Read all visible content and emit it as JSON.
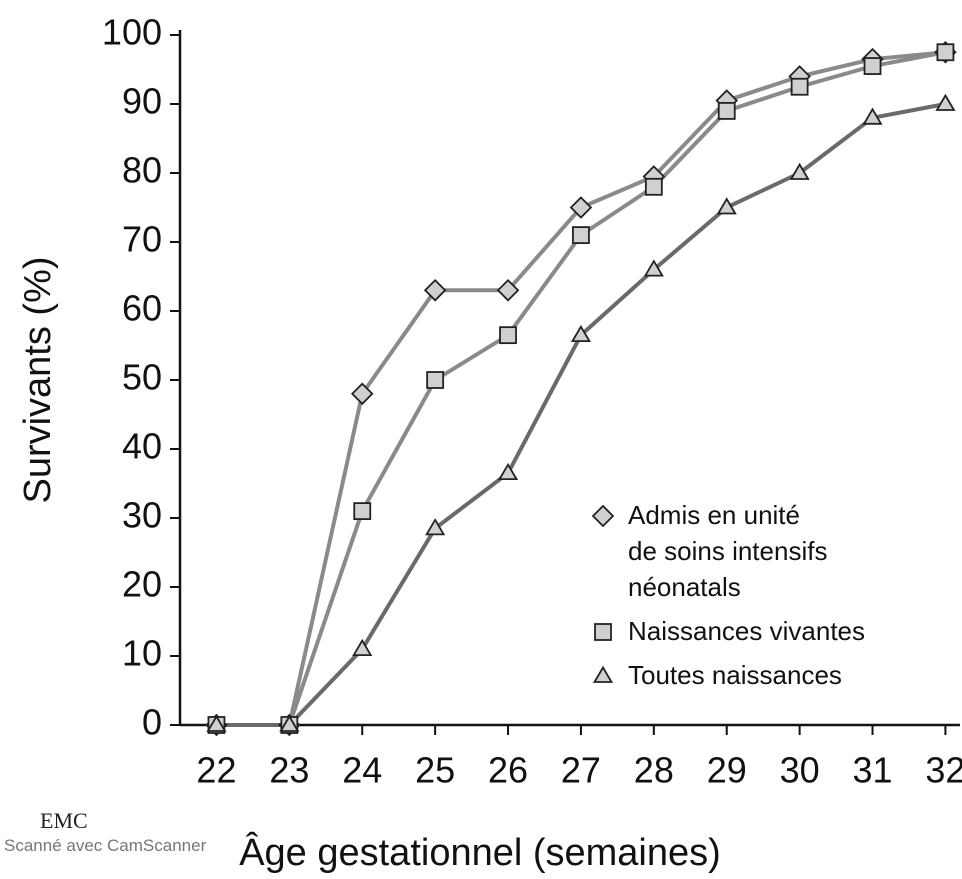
{
  "chart_data": {
    "type": "line",
    "x_label": "Âge gestationnel (semaines)",
    "y_label": "Survivants (%)",
    "logo": "EMC",
    "watermark": "Scanné avec CamScanner",
    "x": [
      22,
      23,
      24,
      25,
      26,
      27,
      28,
      29,
      30,
      31,
      32
    ],
    "xlim": [
      21.5,
      32.2
    ],
    "xticks": [
      22,
      23,
      24,
      25,
      26,
      27,
      28,
      29,
      30,
      31,
      32
    ],
    "ylim": [
      0,
      100
    ],
    "yticks": [
      0,
      10,
      20,
      30,
      40,
      50,
      60,
      70,
      80,
      90,
      100
    ],
    "grid": false,
    "legend": "lower right",
    "series": [
      {
        "name": "Admis en unité\nde soins intensifs\nnéonatals",
        "color": "#8a8a8a",
        "marker": "diamond",
        "values": [
          0,
          0,
          48,
          63,
          63,
          75,
          79.5,
          90.5,
          94,
          96.5,
          97.5
        ]
      },
      {
        "name": "Naissances vivantes",
        "color": "#8a8a8a",
        "marker": "square",
        "values": [
          0,
          0,
          31,
          50,
          56.5,
          71,
          78,
          89,
          92.5,
          95.5,
          97.5
        ]
      },
      {
        "name": "Toutes naissances",
        "color": "#6a6a6a",
        "marker": "triangle",
        "values": [
          0,
          0,
          11,
          28.5,
          36.5,
          56.5,
          66,
          75,
          80,
          88,
          90
        ]
      }
    ]
  }
}
